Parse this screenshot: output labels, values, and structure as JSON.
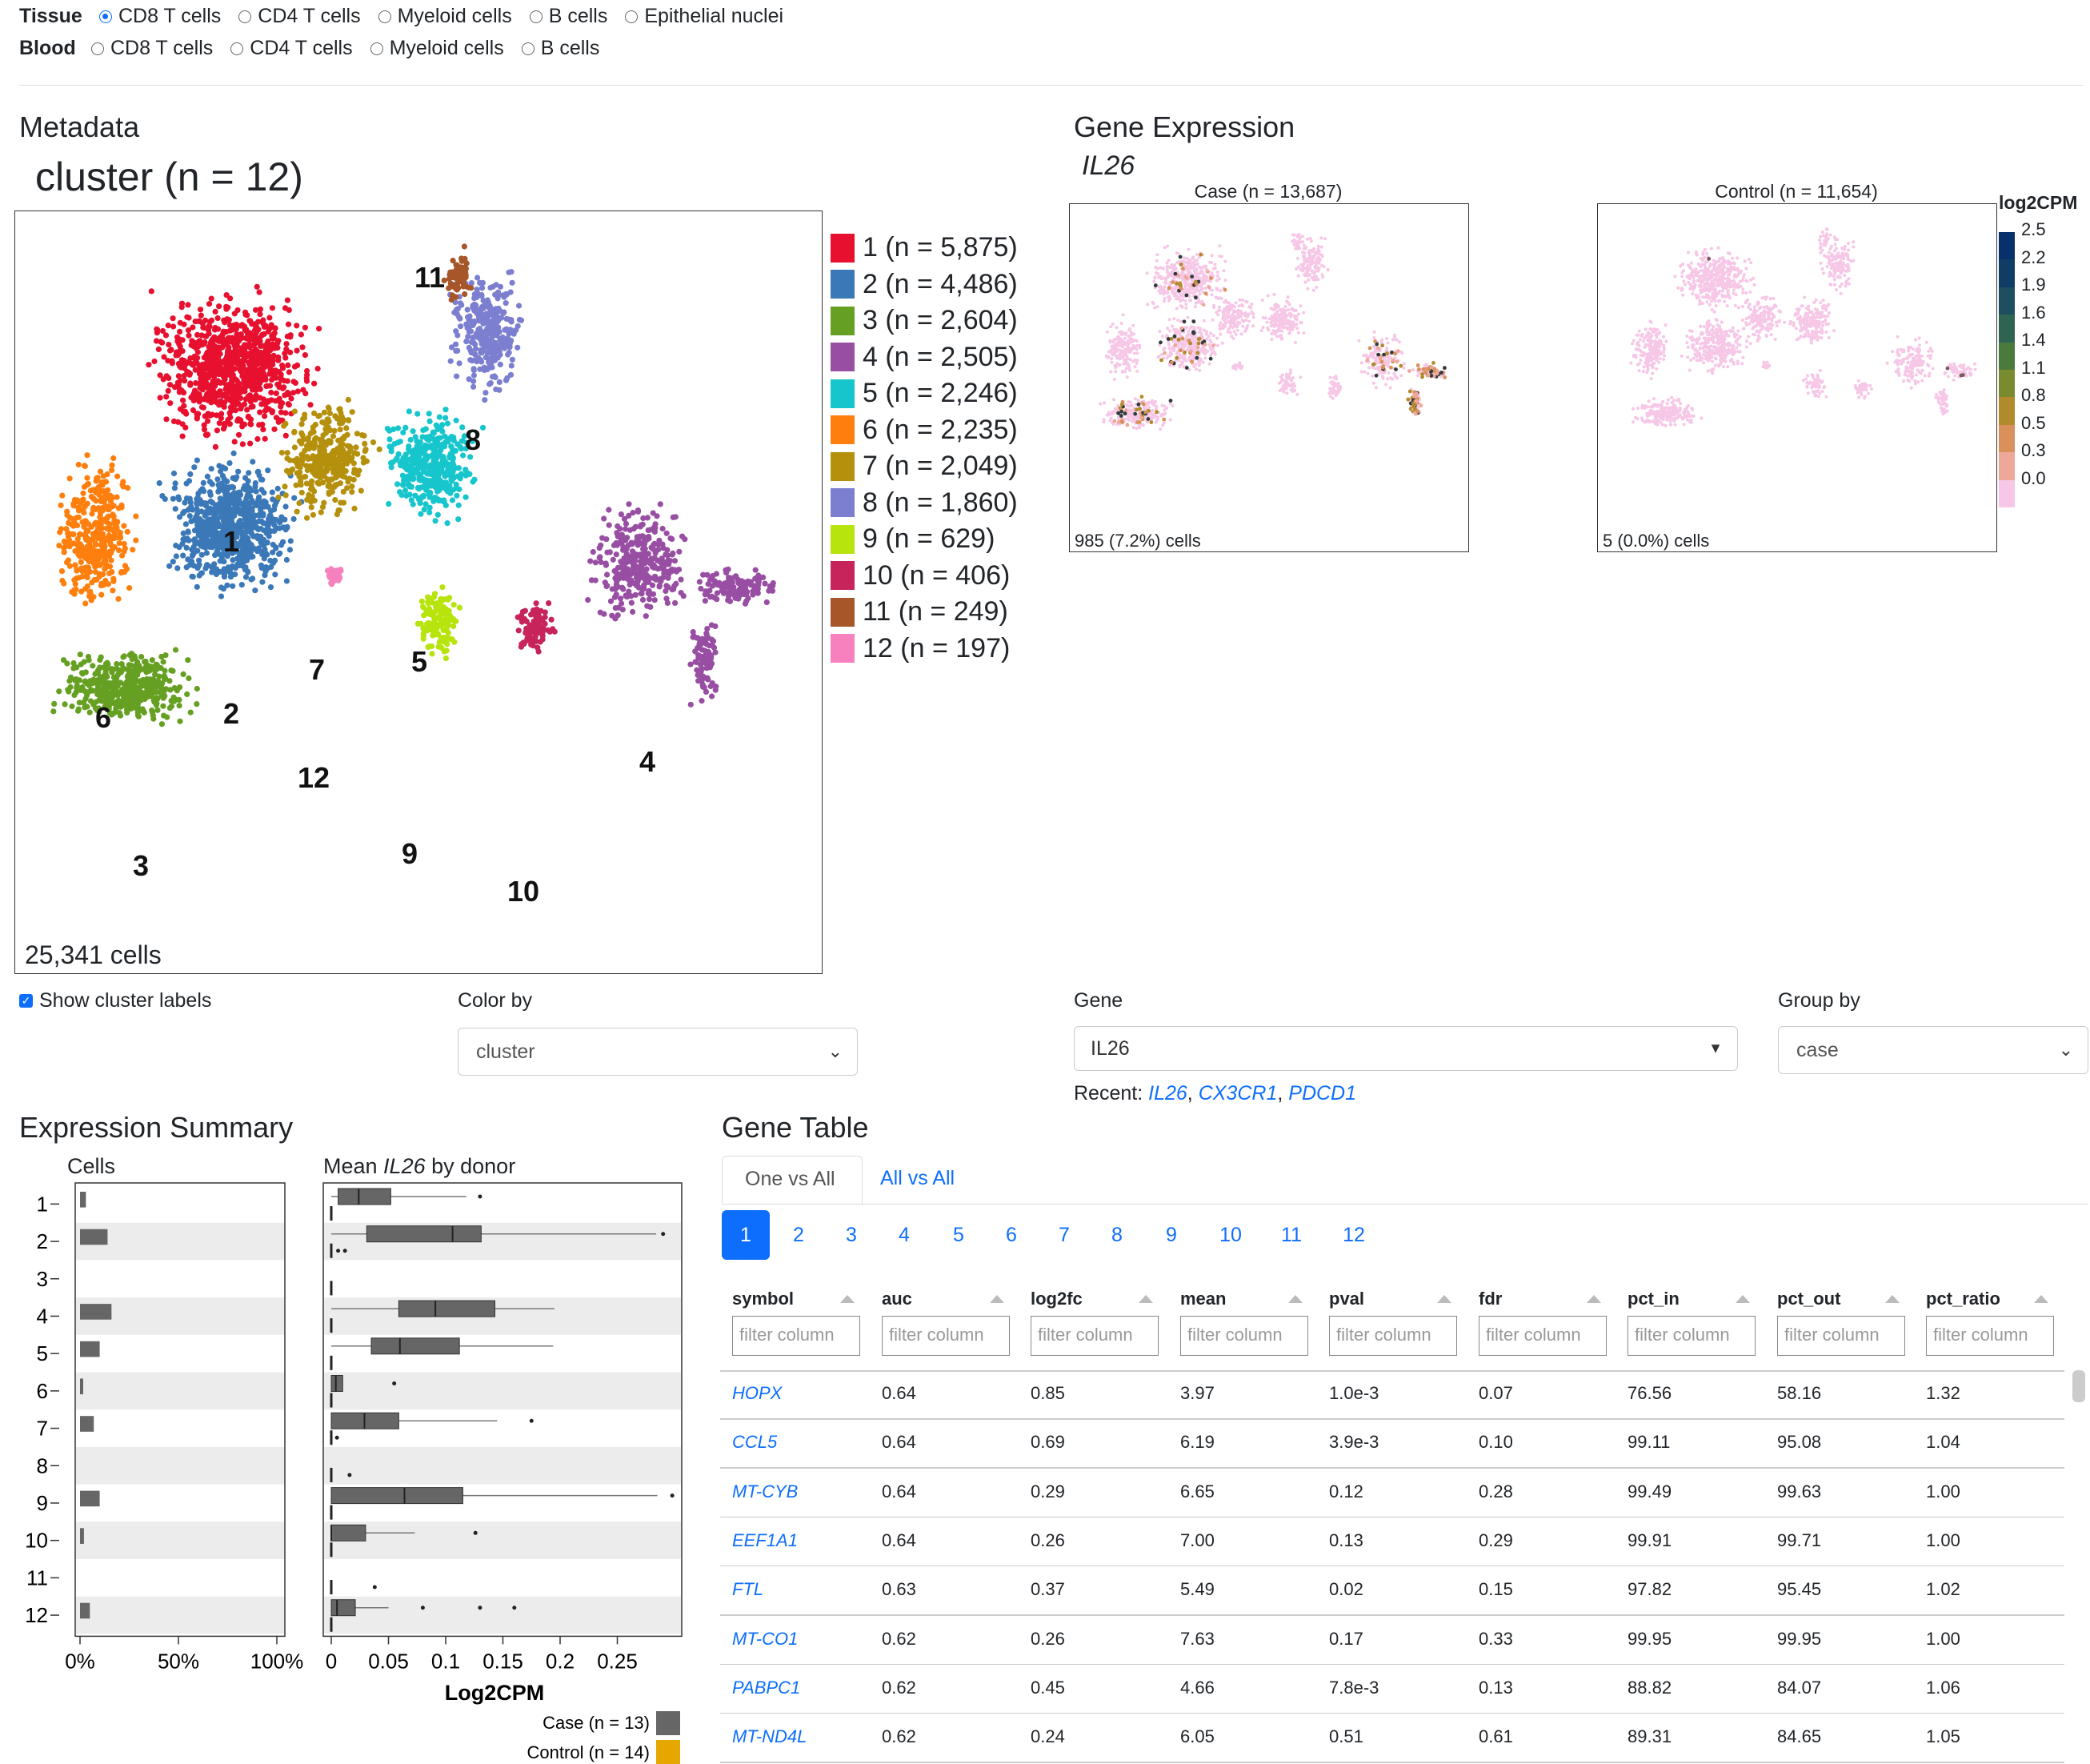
{
  "selector": {
    "tissue_label": "Tissue",
    "blood_label": "Blood",
    "tissue_options": [
      "CD8 T cells",
      "CD4 T cells",
      "Myeloid cells",
      "B cells",
      "Epithelial nuclei"
    ],
    "blood_options": [
      "CD8 T cells",
      "CD4 T cells",
      "Myeloid cells",
      "B cells"
    ],
    "selected": "Tissue: CD8 T cells"
  },
  "metadata": {
    "heading": "Metadata",
    "plot_title": "cluster (n = 12)",
    "cell_count": "25,341 cells",
    "legend": [
      {
        "label": "1 (n = 5,875)",
        "color": "#e8102f"
      },
      {
        "label": "2 (n = 4,486)",
        "color": "#3b78b8"
      },
      {
        "label": "3 (n = 2,604)",
        "color": "#66a023"
      },
      {
        "label": "4 (n = 2,505)",
        "color": "#984ea3"
      },
      {
        "label": "5 (n = 2,246)",
        "color": "#16c6cc"
      },
      {
        "label": "6 (n = 2,235)",
        "color": "#ff7f0e"
      },
      {
        "label": "7 (n = 2,049)",
        "color": "#b5900c"
      },
      {
        "label": "8 (n = 1,860)",
        "color": "#7c7fd0"
      },
      {
        "label": "9 (n = 629)",
        "color": "#b8e40d"
      },
      {
        "label": "10 (n = 406)",
        "color": "#c7245b"
      },
      {
        "label": "11 (n = 249)",
        "color": "#a65628"
      },
      {
        "label": "12 (n = 197)",
        "color": "#f781bf"
      }
    ],
    "cluster_labels": [
      "1",
      "2",
      "3",
      "4",
      "5",
      "6",
      "7",
      "8",
      "9",
      "10",
      "11",
      "12"
    ],
    "show_labels": "Show cluster labels",
    "color_by_label": "Color by",
    "color_by_value": "cluster"
  },
  "gene_expression": {
    "heading": "Gene Expression",
    "gene": "IL26",
    "case_title": "Case (n = 13,687)",
    "control_title": "Control (n = 11,654)",
    "case_cells": "985 (7.2%) cells",
    "control_cells": "5 (0.0%) cells",
    "colorbar_title": "log2CPM",
    "colorbar_ticks": [
      "2.5",
      "2.2",
      "1.9",
      "1.6",
      "1.4",
      "1.1",
      "0.8",
      "0.5",
      "0.3",
      "0.0"
    ],
    "colorbar_colors": [
      "#08306b",
      "#0f3d66",
      "#1d4f60",
      "#2f6452",
      "#4b7a3d",
      "#7a8a2e",
      "#b08a2b",
      "#d9905a",
      "#eea89a",
      "#f6c7e6"
    ],
    "gene_label": "Gene",
    "gene_value": "IL26",
    "group_by_label": "Group by",
    "group_by_value": "case",
    "recent_label": "Recent:",
    "recent": [
      "IL26",
      "CX3CR1",
      "PDCD1"
    ]
  },
  "expression_summary": {
    "heading": "Expression Summary",
    "cells_title": "Cells",
    "mean_title_pre": "Mean ",
    "mean_title_gene": "IL26",
    "mean_title_post": " by donor",
    "clusters": [
      "1",
      "2",
      "3",
      "4",
      "5",
      "6",
      "7",
      "8",
      "9",
      "10",
      "11",
      "12"
    ],
    "cells_pct": [
      0.03,
      0.14,
      0.0,
      0.16,
      0.1,
      0.01,
      0.07,
      0.0,
      0.1,
      0.02,
      0.0,
      0.05
    ],
    "cells_ticks": [
      "0%",
      "50%",
      "100%"
    ],
    "mean_ticks": [
      "0",
      "0.05",
      "0.1",
      "0.15",
      "0.2",
      "0.25"
    ],
    "xlabel": "Log2CPM",
    "legend_case": "Case (n = 13)",
    "legend_control": "Control (n = 14)",
    "case_color": "#666666",
    "control_color": "#e6a700",
    "case_boxes": [
      {
        "q1": 0.006,
        "med": 0.024,
        "q3": 0.052,
        "min": 0.0,
        "max": 0.118,
        "out": [
          0.13
        ]
      },
      {
        "q1": 0.031,
        "med": 0.106,
        "q3": 0.131,
        "min": 0.0,
        "max": 0.284,
        "out": [
          0.29
        ]
      },
      null,
      {
        "q1": 0.059,
        "med": 0.091,
        "q3": 0.143,
        "min": 0.0,
        "max": 0.195,
        "out": []
      },
      {
        "q1": 0.035,
        "med": 0.06,
        "q3": 0.112,
        "min": 0.0,
        "max": 0.194,
        "out": []
      },
      {
        "q1": 0.0,
        "med": 0.004,
        "q3": 0.01,
        "min": 0.0,
        "max": 0.01,
        "out": [
          0.055
        ]
      },
      {
        "q1": 0.0,
        "med": 0.029,
        "q3": 0.059,
        "min": 0.0,
        "max": 0.145,
        "out": [
          0.175
        ]
      },
      null,
      {
        "q1": 0.0,
        "med": 0.064,
        "q3": 0.115,
        "min": 0.0,
        "max": 0.285,
        "out": [
          0.298
        ]
      },
      {
        "q1": 0.0,
        "med": 0.0,
        "q3": 0.03,
        "min": 0.0,
        "max": 0.073,
        "out": [
          0.126
        ]
      },
      null,
      {
        "q1": 0.0,
        "med": 0.005,
        "q3": 0.021,
        "min": 0.0,
        "max": 0.05,
        "out": [
          0.08,
          0.13,
          0.16
        ]
      }
    ],
    "control_marks": [
      {
        "v": 0.0,
        "out": []
      },
      {
        "v": 0.0,
        "out": [
          0.006,
          0.012
        ]
      },
      {
        "v": 0.0,
        "out": []
      },
      {
        "v": 0.0,
        "out": []
      },
      {
        "v": 0.0,
        "out": []
      },
      {
        "v": 0.0,
        "out": []
      },
      {
        "v": 0.0,
        "out": [
          0.005
        ]
      },
      {
        "v": 0.0,
        "out": [
          0.016
        ]
      },
      {
        "v": 0.0,
        "out": []
      },
      {
        "v": 0.0,
        "out": []
      },
      {
        "v": 0.0,
        "out": [
          0.038
        ]
      },
      {
        "v": 0.0,
        "out": []
      }
    ]
  },
  "gene_table": {
    "heading": "Gene Table",
    "tabs": [
      "One vs All",
      "All vs All"
    ],
    "pages": [
      "1",
      "2",
      "3",
      "4",
      "5",
      "6",
      "7",
      "8",
      "9",
      "10",
      "11",
      "12"
    ],
    "columns": [
      "symbol",
      "auc",
      "log2fc",
      "mean",
      "pval",
      "fdr",
      "pct_in",
      "pct_out",
      "pct_ratio"
    ],
    "filter_placeholder": "filter column",
    "rows": [
      [
        "HOPX",
        "0.64",
        "0.85",
        "3.97",
        "1.0e-3",
        "0.07",
        "76.56",
        "58.16",
        "1.32"
      ],
      [
        "CCL5",
        "0.64",
        "0.69",
        "6.19",
        "3.9e-3",
        "0.10",
        "99.11",
        "95.08",
        "1.04"
      ],
      [
        "MT-CYB",
        "0.64",
        "0.29",
        "6.65",
        "0.12",
        "0.28",
        "99.49",
        "99.63",
        "1.00"
      ],
      [
        "EEF1A1",
        "0.64",
        "0.26",
        "7.00",
        "0.13",
        "0.29",
        "99.91",
        "99.71",
        "1.00"
      ],
      [
        "FTL",
        "0.63",
        "0.37",
        "5.49",
        "0.02",
        "0.15",
        "97.82",
        "95.45",
        "1.02"
      ],
      [
        "MT-CO1",
        "0.62",
        "0.26",
        "7.63",
        "0.17",
        "0.33",
        "99.95",
        "99.95",
        "1.00"
      ],
      [
        "PABPC1",
        "0.62",
        "0.45",
        "4.66",
        "7.8e-3",
        "0.13",
        "88.82",
        "84.07",
        "1.06"
      ],
      [
        "MT-ND4L",
        "0.62",
        "0.24",
        "6.05",
        "0.51",
        "0.61",
        "89.31",
        "84.65",
        "1.05"
      ]
    ]
  }
}
